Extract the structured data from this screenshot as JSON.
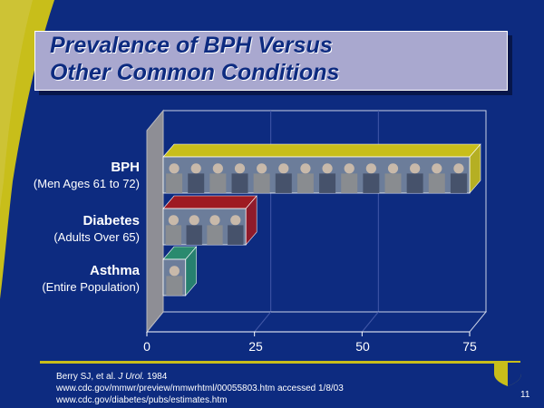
{
  "slide": {
    "title_line1": "Prevalence of BPH Versus",
    "title_line2": "Other Common Conditions",
    "page_number": "11"
  },
  "references": {
    "ref1_text": "Berry SJ, et al. ",
    "ref1_journal": "J Urol.",
    "ref1_year": " 1984",
    "ref2": "www.cdc.gov/mmwr/preview/mmwrhtml/00055803.htm accessed 1/8/03",
    "ref3": "www.cdc.gov/diabetes/pubs/estimates.htm"
  },
  "chart_data": {
    "type": "bar",
    "orientation": "horizontal",
    "categories": [
      {
        "name": "BPH",
        "subtitle": "(Men Ages 61 to 72)"
      },
      {
        "name": "Diabetes",
        "subtitle": "(Adults Over 65)"
      },
      {
        "name": "Asthma",
        "subtitle": "(Entire Population)"
      }
    ],
    "values": [
      75,
      23,
      9
    ],
    "bar_colors": [
      "#c8be1a",
      "#9e1a22",
      "#2a8a6e"
    ],
    "xlim": [
      0,
      75
    ],
    "xticks": [
      "0",
      "25",
      "50",
      "75"
    ],
    "grid": true,
    "style": "3d"
  },
  "colors": {
    "background": "#0d2b80",
    "accent": "#c8be1a",
    "title_box": "#a9a8cf"
  }
}
